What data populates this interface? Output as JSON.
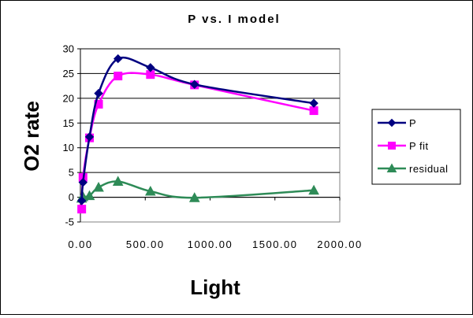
{
  "chart_data": {
    "type": "line",
    "title": "P vs. I model",
    "xlabel": "Light",
    "ylabel": "O2 rate",
    "xlim": [
      0,
      2000
    ],
    "ylim": [
      -5,
      30
    ],
    "x_ticks": [
      "0.00",
      "500.00",
      "1000.00",
      "1500.00",
      "2000.00"
    ],
    "y_ticks": [
      "-5",
      "0",
      "5",
      "10",
      "15",
      "20",
      "25",
      "30"
    ],
    "grid": "horizontal",
    "legend": "right",
    "series": [
      {
        "name": "P",
        "color": "#000080",
        "marker": "diamond",
        "x": [
          10,
          20,
          70,
          140,
          290,
          540,
          880,
          1800
        ],
        "y": [
          -0.7,
          3.0,
          12.2,
          21.0,
          28.0,
          26.2,
          22.8,
          19.0
        ]
      },
      {
        "name": "P fit",
        "color": "#ff00ff",
        "marker": "square",
        "x": [
          10,
          20,
          70,
          140,
          290,
          540,
          880,
          1800
        ],
        "y": [
          -2.4,
          4.0,
          12.0,
          18.8,
          24.5,
          24.8,
          22.7,
          17.5
        ]
      },
      {
        "name": "residual",
        "color": "#2e8b57",
        "marker": "triangle",
        "x": [
          10,
          20,
          70,
          140,
          290,
          540,
          880,
          1800
        ],
        "y": [
          -0.2,
          0.1,
          0.3,
          2.0,
          3.2,
          1.2,
          -0.1,
          1.4
        ]
      }
    ]
  }
}
